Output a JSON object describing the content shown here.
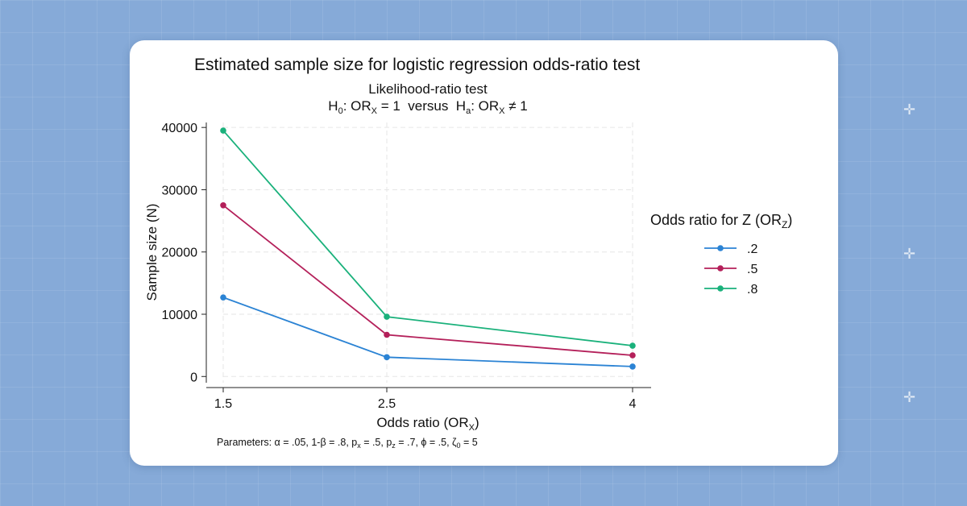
{
  "background": {
    "color": "#86aad8"
  },
  "chart_data": {
    "type": "line",
    "title": "Estimated sample size for logistic regression odds-ratio test",
    "subtitle_line1": "Likelihood-ratio test",
    "subtitle_line2": {
      "h0_prefix": "H",
      "h0_sub": "0",
      "h0_mid": ": OR",
      "h0_sub2": "X",
      "h0_tail": " = 1  versus  H",
      "ha_sub": "a",
      "ha_mid": ": OR",
      "ha_sub2": "X",
      "ha_tail": " ≠ 1"
    },
    "xlabel": {
      "main": "Odds ratio (OR",
      "sub": "X",
      "close": ")"
    },
    "ylabel": "Sample size (N)",
    "x": [
      1.5,
      2.5,
      4
    ],
    "x_tick_labels": [
      "1.5",
      "2.5",
      "4"
    ],
    "y_ticks": [
      0,
      10000,
      20000,
      30000,
      40000
    ],
    "y_tick_labels": [
      "0",
      "10000",
      "20000",
      "30000",
      "40000"
    ],
    "ylim": [
      -1000,
      40800
    ],
    "grid": true,
    "legend": {
      "placement": "right",
      "title_main": "Odds ratio for Z (OR",
      "title_sub": "Z",
      "title_close": ")"
    },
    "series": [
      {
        "name": ".2",
        "color": "#2b83d4",
        "values": [
          12700,
          3100,
          1600
        ]
      },
      {
        "name": ".5",
        "color": "#b4205a",
        "values": [
          27500,
          6700,
          3400
        ]
      },
      {
        "name": ".8",
        "color": "#1ab17b",
        "values": [
          39500,
          9600,
          4950
        ]
      }
    ],
    "note_parts": [
      {
        "t": "Parameters: α = .05, 1-β = .8, p"
      },
      {
        "t": "x",
        "sub": true
      },
      {
        "t": " = .5, p"
      },
      {
        "t": "z",
        "sub": true
      },
      {
        "t": " = .7, ϕ = .5, ζ"
      },
      {
        "t": "0",
        "sub": true
      },
      {
        "t": " = 5"
      }
    ]
  }
}
